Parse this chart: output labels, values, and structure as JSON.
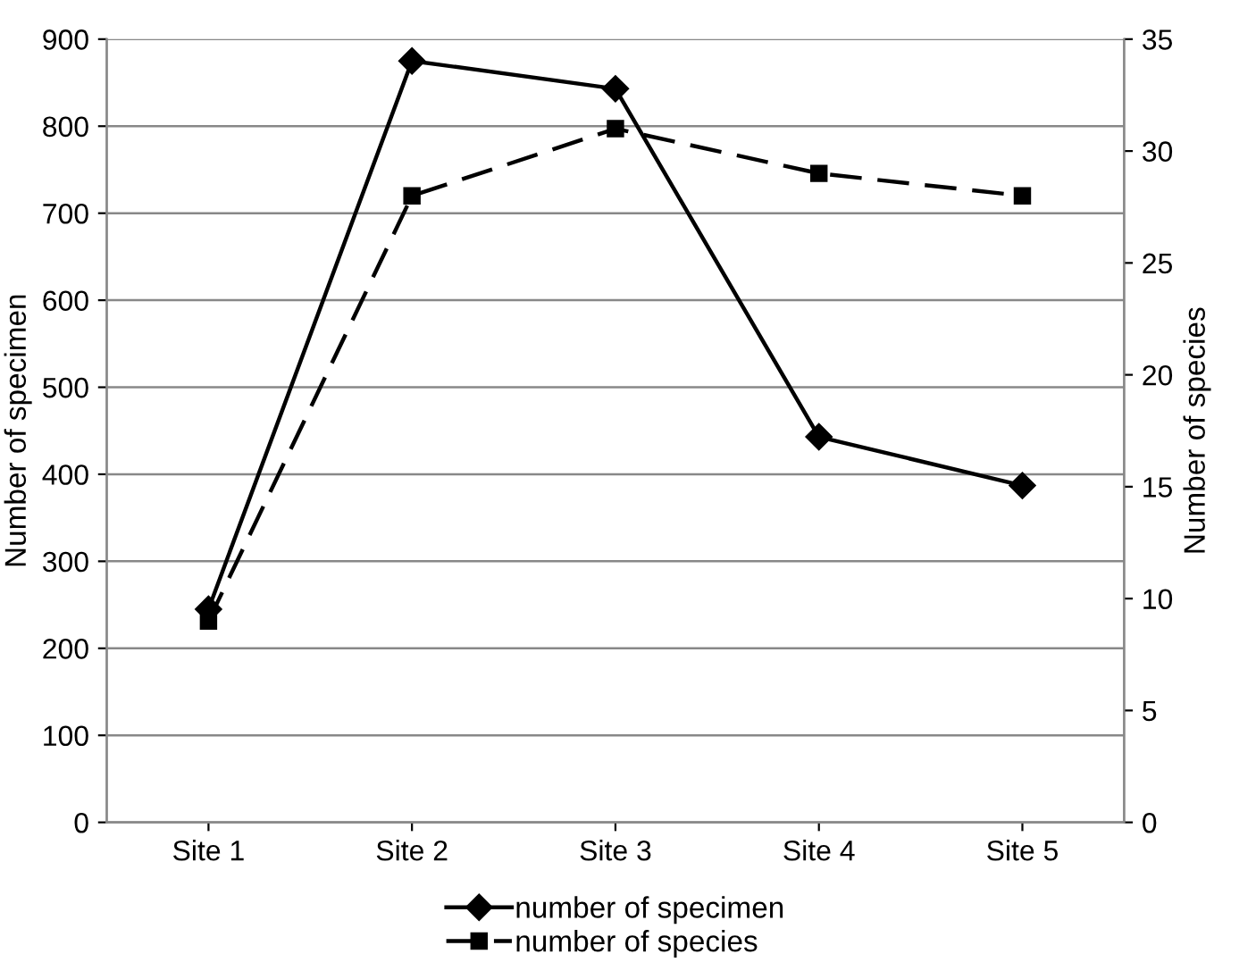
{
  "chart_data": {
    "type": "line",
    "ylabel": "Number of specimen",
    "y2label": "Number of species",
    "categories": [
      "Site 1",
      "Site 2",
      "Site 3",
      "Site 4",
      "Site 5"
    ],
    "series": [
      {
        "name": "number of specimen",
        "color": "#000000",
        "values": [
          245,
          875,
          843,
          443,
          387
        ],
        "marker": "diamond",
        "line_style": "solid"
      },
      {
        "name": "number of species",
        "color": "#000000",
        "values": [
          9,
          28,
          31,
          29,
          28
        ],
        "marker": "square",
        "line_style": "dashed",
        "axis": "y2"
      }
    ],
    "ylim": [
      0,
      900
    ],
    "yticks": [
      0,
      100,
      200,
      300,
      400,
      500,
      600,
      700,
      800,
      900
    ],
    "y2lim": [
      0,
      35
    ],
    "y2ticks": [
      0,
      5,
      10,
      15,
      20,
      25,
      30,
      35
    ],
    "grid": "y",
    "legend": "bottom"
  }
}
